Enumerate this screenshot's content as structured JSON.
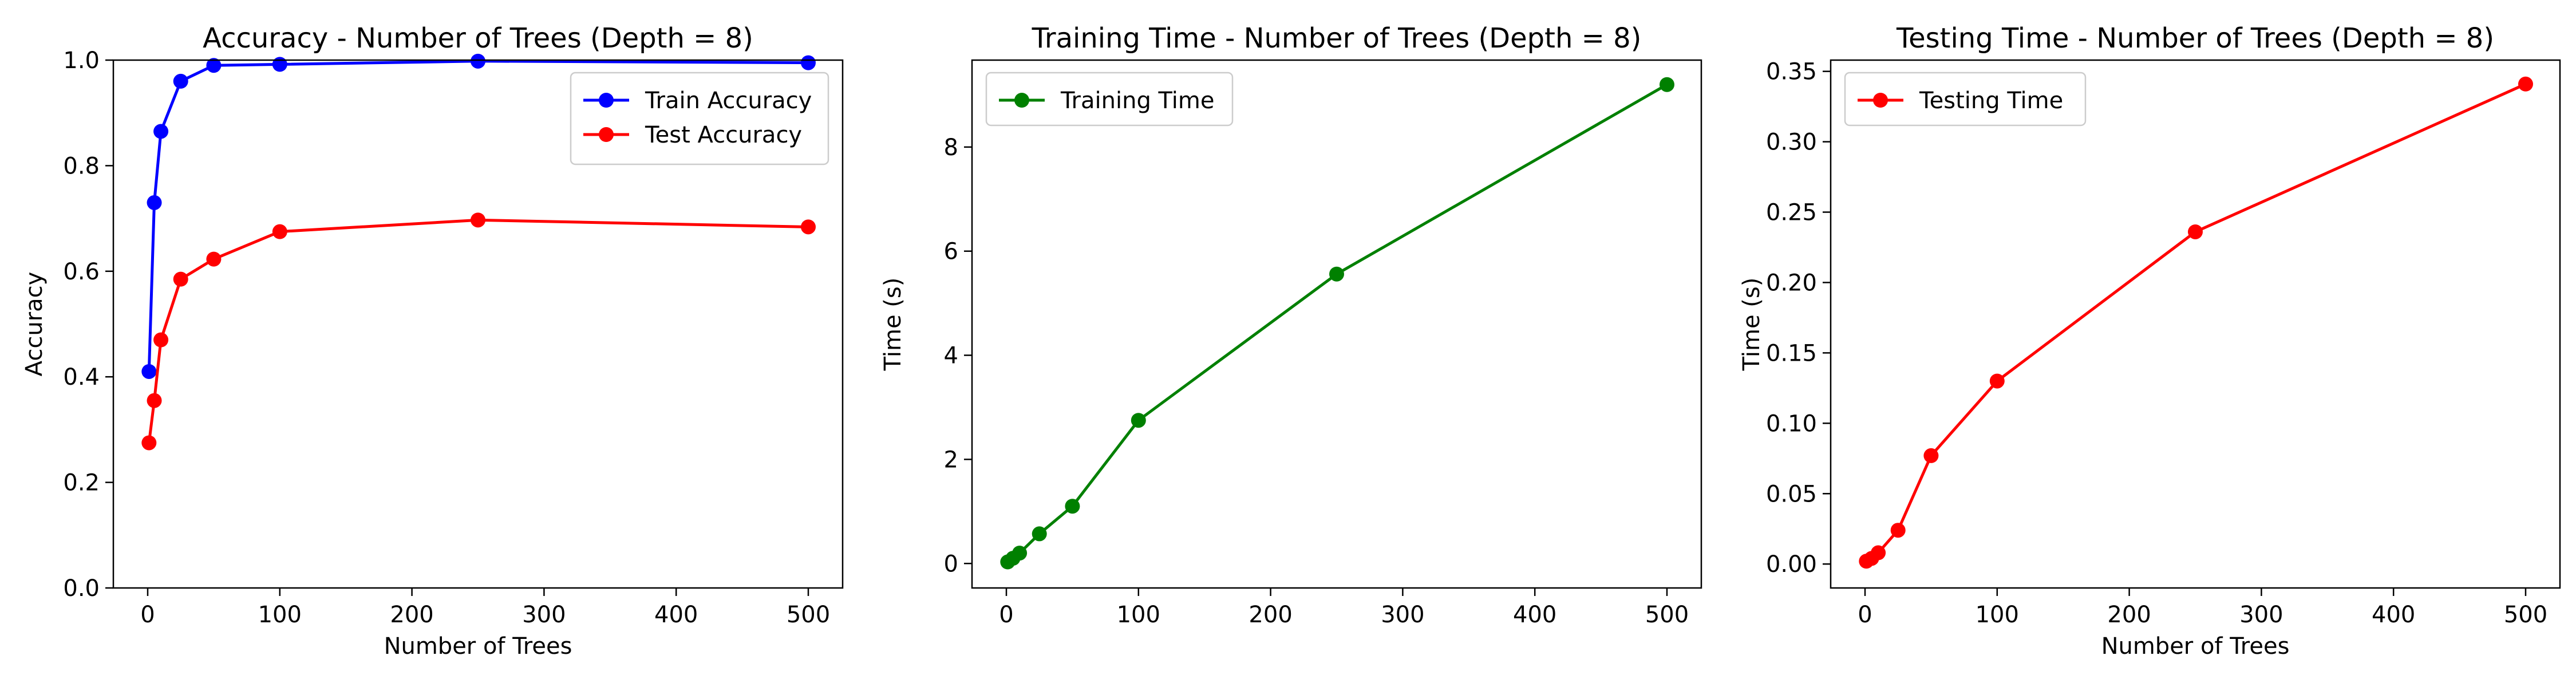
{
  "chart_data": [
    {
      "type": "line",
      "title": "Accuracy - Number of Trees (Depth = 8)",
      "xlabel": "Number of Trees",
      "ylabel": "Accuracy",
      "x": [
        1,
        5,
        10,
        25,
        50,
        100,
        250,
        500
      ],
      "xlim": [
        -26,
        526
      ],
      "ylim": [
        0.0,
        1.0
      ],
      "xticks": [
        0,
        100,
        200,
        300,
        400,
        500
      ],
      "yticks": [
        0.0,
        0.2,
        0.4,
        0.6,
        0.8,
        1.0
      ],
      "ytick_decimals": 1,
      "legend_loc": "upper right",
      "series": [
        {
          "name": "Train Accuracy",
          "color": "#0000ff",
          "values": [
            0.41,
            0.73,
            0.865,
            0.96,
            0.99,
            0.992,
            0.998,
            0.995
          ]
        },
        {
          "name": "Test Accuracy",
          "color": "#ff0000",
          "values": [
            0.275,
            0.355,
            0.47,
            0.585,
            0.623,
            0.675,
            0.697,
            0.684
          ]
        }
      ]
    },
    {
      "type": "line",
      "title": "Training Time - Number of Trees (Depth = 8)",
      "xlabel": "",
      "ylabel": "Time (s)",
      "x": [
        1,
        5,
        10,
        25,
        50,
        100,
        250,
        500
      ],
      "xlim": [
        -26,
        526
      ],
      "ylim": [
        -0.47,
        9.67
      ],
      "xticks": [
        0,
        100,
        200,
        300,
        400,
        500
      ],
      "yticks": [
        0,
        2,
        4,
        6,
        8
      ],
      "ytick_decimals": 0,
      "legend_loc": "upper left",
      "series": [
        {
          "name": "Training Time",
          "color": "#008000",
          "values": [
            0.03,
            0.1,
            0.2,
            0.57,
            1.1,
            2.75,
            5.56,
            9.2
          ]
        }
      ]
    },
    {
      "type": "line",
      "title": "Testing Time - Number of Trees (Depth = 8)",
      "xlabel": "Number of Trees",
      "ylabel": "Time (s)",
      "x": [
        1,
        5,
        10,
        25,
        50,
        100,
        250,
        500
      ],
      "xlim": [
        -26,
        526
      ],
      "ylim": [
        -0.017,
        0.358
      ],
      "xticks": [
        0,
        100,
        200,
        300,
        400,
        500
      ],
      "yticks": [
        0.0,
        0.05,
        0.1,
        0.15,
        0.2,
        0.25,
        0.3,
        0.35
      ],
      "ytick_decimals": 2,
      "legend_loc": "upper left",
      "series": [
        {
          "name": "Testing Time",
          "color": "#ff0000",
          "values": [
            0.002,
            0.004,
            0.008,
            0.024,
            0.077,
            0.13,
            0.236,
            0.341
          ]
        }
      ]
    }
  ]
}
